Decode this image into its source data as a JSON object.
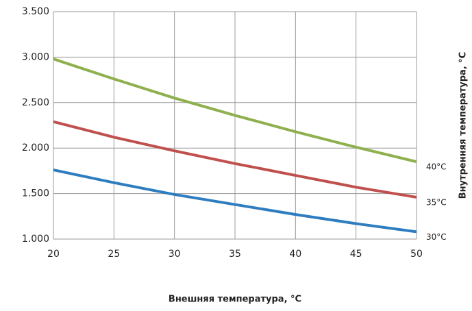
{
  "chart_data": {
    "type": "line",
    "xlabel": "Внешняя температура, °C",
    "ylabel": "Внутренняя температура, °C",
    "x": [
      20,
      25,
      30,
      35,
      40,
      45,
      50
    ],
    "series": [
      {
        "name": "40°C",
        "color": "#8fb04e",
        "values": [
          2980,
          2760,
          2550,
          2360,
          2180,
          2010,
          1850
        ]
      },
      {
        "name": "35°C",
        "color": "#c0504d",
        "values": [
          2290,
          2120,
          1970,
          1830,
          1700,
          1570,
          1460
        ]
      },
      {
        "name": "30°C",
        "color": "#2e7dbf",
        "values": [
          1760,
          1620,
          1490,
          1380,
          1270,
          1170,
          1080
        ]
      }
    ],
    "xlim": [
      20,
      50
    ],
    "xticks": [
      20,
      25,
      30,
      35,
      40,
      45,
      50
    ],
    "ylim": [
      1000,
      3500
    ],
    "yticks": [
      {
        "value": 1000,
        "label": "1.000"
      },
      {
        "value": 1500,
        "label": "1.500"
      },
      {
        "value": 2000,
        "label": "2.000"
      },
      {
        "value": 2500,
        "label": "2.500"
      },
      {
        "value": 3000,
        "label": "3.000"
      },
      {
        "value": 3500,
        "label": "3.500"
      }
    ],
    "grid": true
  }
}
